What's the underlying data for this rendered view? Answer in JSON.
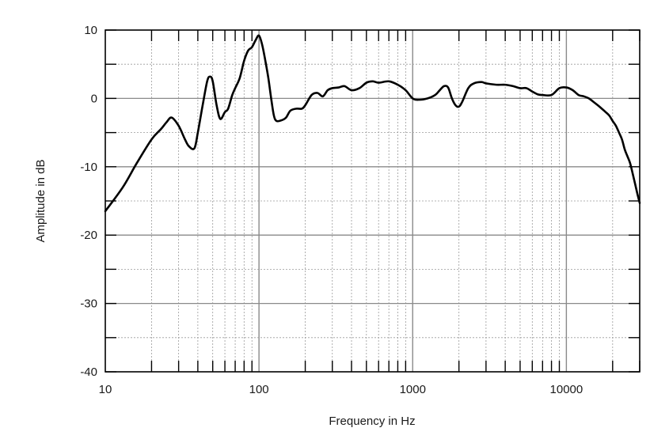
{
  "chart_data": {
    "type": "line",
    "title": "",
    "xlabel": "Frequency in Hz",
    "ylabel": "Amplitude in dB",
    "x_scale": "log",
    "xlim": [
      10,
      30000
    ],
    "ylim": [
      -40,
      10
    ],
    "x_ticks": [
      10,
      100,
      1000,
      10000
    ],
    "x_tick_labels": [
      "10",
      "100",
      "1000",
      "10000"
    ],
    "y_ticks": [
      10,
      0,
      -10,
      -20,
      -30,
      -40
    ],
    "y_tick_labels": [
      "10",
      "0",
      "-10",
      "-20",
      "-30",
      "-40"
    ],
    "grid": true,
    "legend": "none",
    "series": [
      {
        "color": "#000000",
        "x": [
          10,
          13,
          16,
          20,
          23,
          25,
          27,
          30,
          33,
          35,
          38,
          40,
          43,
          46,
          48,
          50,
          53,
          56,
          60,
          63,
          67,
          70,
          75,
          80,
          85,
          90,
          95,
          100,
          105,
          110,
          115,
          120,
          125,
          130,
          140,
          150,
          160,
          175,
          190,
          200,
          220,
          240,
          260,
          280,
          300,
          330,
          360,
          400,
          450,
          500,
          550,
          600,
          700,
          800,
          900,
          1000,
          1100,
          1250,
          1400,
          1500,
          1600,
          1700,
          1800,
          1900,
          2000,
          2100,
          2300,
          2500,
          2800,
          3000,
          3500,
          4000,
          4500,
          5000,
          5500,
          6000,
          6500,
          7000,
          8000,
          9000,
          10000,
          11000,
          12000,
          13000,
          14000,
          15000,
          16000,
          17000,
          18000,
          19000,
          20000,
          21000,
          22000,
          23000,
          24000,
          25000,
          26000,
          27000,
          28000,
          29000,
          30000
        ],
        "y": [
          -16.5,
          -13,
          -9.5,
          -6,
          -4.5,
          -3.5,
          -2.8,
          -4,
          -6,
          -7,
          -7.3,
          -5,
          -1,
          2.5,
          3.2,
          2.5,
          -1,
          -3,
          -2,
          -1.5,
          0.5,
          1.5,
          3,
          5.5,
          7,
          7.5,
          8.5,
          9.2,
          7.8,
          5.5,
          3,
          0,
          -2.5,
          -3.3,
          -3.2,
          -2.8,
          -1.8,
          -1.5,
          -1.5,
          -1,
          0.5,
          0.8,
          0.3,
          1.2,
          1.5,
          1.6,
          1.8,
          1.2,
          1.5,
          2.3,
          2.5,
          2.3,
          2.5,
          2,
          1.2,
          0,
          -0.2,
          0,
          0.5,
          1.2,
          1.8,
          1.6,
          0,
          -1,
          -1.2,
          -0.5,
          1.5,
          2.2,
          2.4,
          2.2,
          2,
          2,
          1.8,
          1.5,
          1.5,
          1,
          0.6,
          0.5,
          0.5,
          1.5,
          1.6,
          1.2,
          0.5,
          0.3,
          0,
          -0.5,
          -1,
          -1.5,
          -2,
          -2.5,
          -3.3,
          -4,
          -5,
          -6,
          -7.5,
          -8.5,
          -9.5,
          -11,
          -12.5,
          -14,
          -15.3
        ]
      }
    ]
  }
}
